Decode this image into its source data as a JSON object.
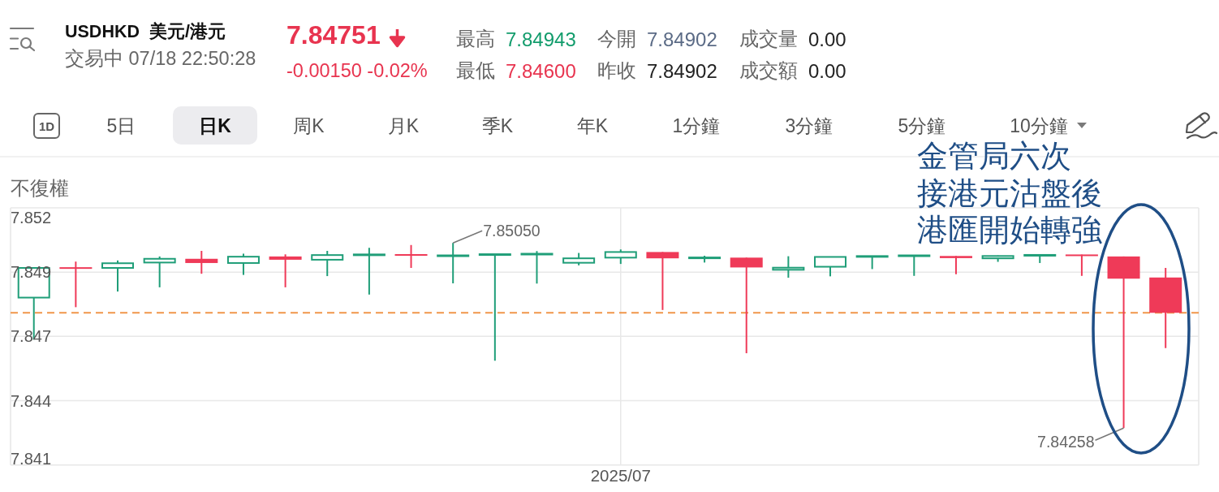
{
  "chart_data": {
    "type": "candlestick",
    "title": "USDHKD  美元/港元",
    "subtitle": "交易中 07/18 22:50:28",
    "categories": [
      null,
      null,
      null,
      null,
      null,
      null,
      null,
      null,
      null,
      null,
      null,
      null,
      null,
      null,
      "2025/07",
      null,
      null,
      null,
      null,
      null,
      null,
      null,
      null,
      null,
      null,
      null,
      null,
      null
    ],
    "ohlc": [
      [
        7.84816,
        7.84945,
        7.84636,
        7.84943
      ],
      [
        7.84945,
        7.8497,
        7.84775,
        7.8494
      ],
      [
        7.84943,
        7.84975,
        7.84842,
        7.84963
      ],
      [
        7.84966,
        7.84992,
        7.8486,
        7.84982
      ],
      [
        7.84982,
        7.85016,
        7.84918,
        7.84964
      ],
      [
        7.84964,
        7.85004,
        7.84913,
        7.84991
      ],
      [
        7.84992,
        7.85001,
        7.8486,
        7.84978
      ],
      [
        7.84978,
        7.85016,
        7.84908,
        7.84998
      ],
      [
        7.84998,
        7.85029,
        7.84829,
        7.85
      ],
      [
        7.85,
        7.85041,
        7.84943,
        7.84997
      ],
      [
        7.84994,
        7.8505,
        7.84877,
        7.84996
      ],
      [
        7.84999,
        7.85001,
        7.84546,
        7.85001
      ],
      [
        7.85001,
        7.85015,
        7.84876,
        7.85003
      ],
      [
        7.84965,
        7.85007,
        7.84954,
        7.84984
      ],
      [
        7.84987,
        7.85022,
        7.8496,
        7.85011
      ],
      [
        7.85011,
        7.85011,
        7.84763,
        7.84984
      ],
      [
        7.84985,
        7.84995,
        7.84966,
        7.84987
      ],
      [
        7.84987,
        7.84987,
        7.84578,
        7.84945
      ],
      [
        7.84935,
        7.84993,
        7.84901,
        7.84944
      ],
      [
        7.84948,
        7.8499,
        7.84907,
        7.8499
      ],
      [
        7.84991,
        7.84993,
        7.84938,
        7.84993
      ],
      [
        7.84994,
        7.84996,
        7.84909,
        7.84996
      ],
      [
        7.84994,
        7.84994,
        7.84916,
        7.84985
      ],
      [
        7.84984,
        7.84996,
        7.84969,
        7.84994
      ],
      [
        7.84996,
        7.84998,
        7.84964,
        7.84998
      ],
      [
        7.85,
        7.85,
        7.84909,
        7.84994
      ],
      [
        7.84992,
        7.84992,
        7.84258,
        7.84897
      ],
      [
        7.84902,
        7.84943,
        7.846,
        7.84751
      ]
    ],
    "colors": [
      "#1f9e78",
      "#ef3a58",
      "#1f9e78",
      "#1f9e78",
      "#ef3a58",
      "#1f9e78",
      "#ef3a58",
      "#1f9e78",
      "#1f9e78",
      "#ef3a58",
      "#1f9e78",
      "#1f9e78",
      "#1f9e78",
      "#1f9e78",
      "#1f9e78",
      "#ef3a58",
      "#1f9e78",
      "#ef3a58",
      "#1f9e78",
      "#1f9e78",
      "#1f9e78",
      "#1f9e78",
      "#ef3a58",
      "#1f9e78",
      "#1f9e78",
      "#ef3a58",
      "#ef3a58",
      "#ef3a58"
    ],
    "ylim": [
      7.841,
      7.852
    ],
    "yticks": [
      7.841,
      {
        "value": 7.84375,
        "label": "7.844"
      },
      {
        "value": 7.8465,
        "label": "7.847"
      },
      {
        "value": 7.84925,
        "label": "7.849"
      },
      7.852
    ],
    "grid": true,
    "ref_lines": [
      {
        "axis": "y",
        "value": 7.84751,
        "color": "#f0964a",
        "line_style": "dashed"
      }
    ],
    "annotations": [
      "7.84751",
      "-0.00150 -0.02%",
      "最高",
      "7.84943",
      "最低",
      "7.84600",
      "今開",
      "7.84902",
      "昨收",
      "7.84902",
      "成交量",
      "0.00",
      "成交額",
      "0.00",
      "1D",
      "5日",
      "日K",
      "周K",
      "月K",
      "季K",
      "年K",
      "1分鐘",
      "3分鐘",
      "5分鐘",
      "10分鐘",
      "不復權",
      "金管局六次",
      "接港元沽盤後",
      "港匯開始轉強",
      "7.85050",
      "7.84258"
    ]
  }
}
